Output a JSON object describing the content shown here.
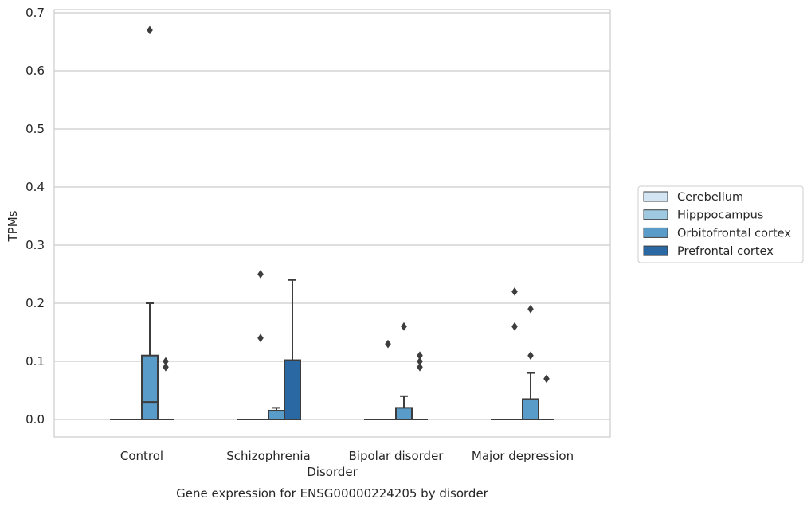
{
  "chart_data": {
    "type": "boxplot",
    "title": "",
    "caption": "Gene expression for ENSG00000224205 by disorder",
    "xlabel": "Disorder",
    "ylabel": "TPMs",
    "ylim": [
      -0.033,
      0.705
    ],
    "yticks": [
      0.0,
      0.1,
      0.2,
      0.3,
      0.4,
      0.5,
      0.6,
      0.7
    ],
    "ytick_labels": [
      "0.0",
      "0.1",
      "0.2",
      "0.3",
      "0.4",
      "0.5",
      "0.6",
      "0.7"
    ],
    "grid": "horizontal",
    "legend_position": "outside-right",
    "categories": [
      "Control",
      "Schizophrenia",
      "Bipolar disorder",
      "Major depression"
    ],
    "series": [
      {
        "name": "Cerebellum",
        "color": "#d3e4f3",
        "boxes": [
          {
            "whislo": 0,
            "q1": 0,
            "med": 0,
            "q3": 0,
            "whishi": 0,
            "fliers": []
          },
          {
            "whislo": 0,
            "q1": 0,
            "med": 0,
            "q3": 0,
            "whishi": 0,
            "fliers": []
          },
          {
            "whislo": 0,
            "q1": 0,
            "med": 0,
            "q3": 0,
            "whishi": 0,
            "fliers": []
          },
          {
            "whislo": 0,
            "q1": 0,
            "med": 0,
            "q3": 0,
            "whishi": 0,
            "fliers": []
          }
        ]
      },
      {
        "name": "Hipppocampus",
        "color": "#9ec9e0",
        "boxes": [
          {
            "whislo": 0,
            "q1": 0,
            "med": 0,
            "q3": 0,
            "whishi": 0,
            "fliers": []
          },
          {
            "whislo": 0,
            "q1": 0,
            "med": 0,
            "q3": 0,
            "whishi": 0,
            "fliers": [
              0.14,
              0.25
            ]
          },
          {
            "whislo": 0,
            "q1": 0,
            "med": 0,
            "q3": 0,
            "whishi": 0,
            "fliers": [
              0.13
            ]
          },
          {
            "whislo": 0,
            "q1": 0,
            "med": 0,
            "q3": 0,
            "whishi": 0,
            "fliers": [
              0.16,
              0.22
            ]
          }
        ]
      },
      {
        "name": "Orbitofrontal cortex",
        "color": "#5a9cc9",
        "boxes": [
          {
            "whislo": 0,
            "q1": 0,
            "med": 0.03,
            "q3": 0.11,
            "whishi": 0.2,
            "fliers": [
              0.67
            ]
          },
          {
            "whislo": 0,
            "q1": 0,
            "med": 0.015,
            "q3": 0.015,
            "whishi": 0.02,
            "fliers": []
          },
          {
            "whislo": 0,
            "q1": 0,
            "med": 0,
            "q3": 0.02,
            "whishi": 0.04,
            "fliers": [
              0.16
            ]
          },
          {
            "whislo": 0,
            "q1": 0,
            "med": 0,
            "q3": 0.035,
            "whishi": 0.08,
            "fliers": [
              0.11,
              0.19
            ]
          }
        ]
      },
      {
        "name": "Prefrontal cortex",
        "color": "#2a68a4",
        "boxes": [
          {
            "whislo": 0,
            "q1": 0,
            "med": 0,
            "q3": 0,
            "whishi": 0,
            "fliers": [
              0.09,
              0.1
            ]
          },
          {
            "whislo": 0,
            "q1": 0,
            "med": 0,
            "q3": 0.102,
            "whishi": 0.24,
            "fliers": []
          },
          {
            "whislo": 0,
            "q1": 0,
            "med": 0,
            "q3": 0,
            "whishi": 0,
            "fliers": [
              0.09,
              0.1,
              0.11
            ]
          },
          {
            "whislo": 0,
            "q1": 0,
            "med": 0,
            "q3": 0,
            "whishi": 0,
            "fliers": [
              0.07
            ]
          }
        ]
      }
    ]
  }
}
